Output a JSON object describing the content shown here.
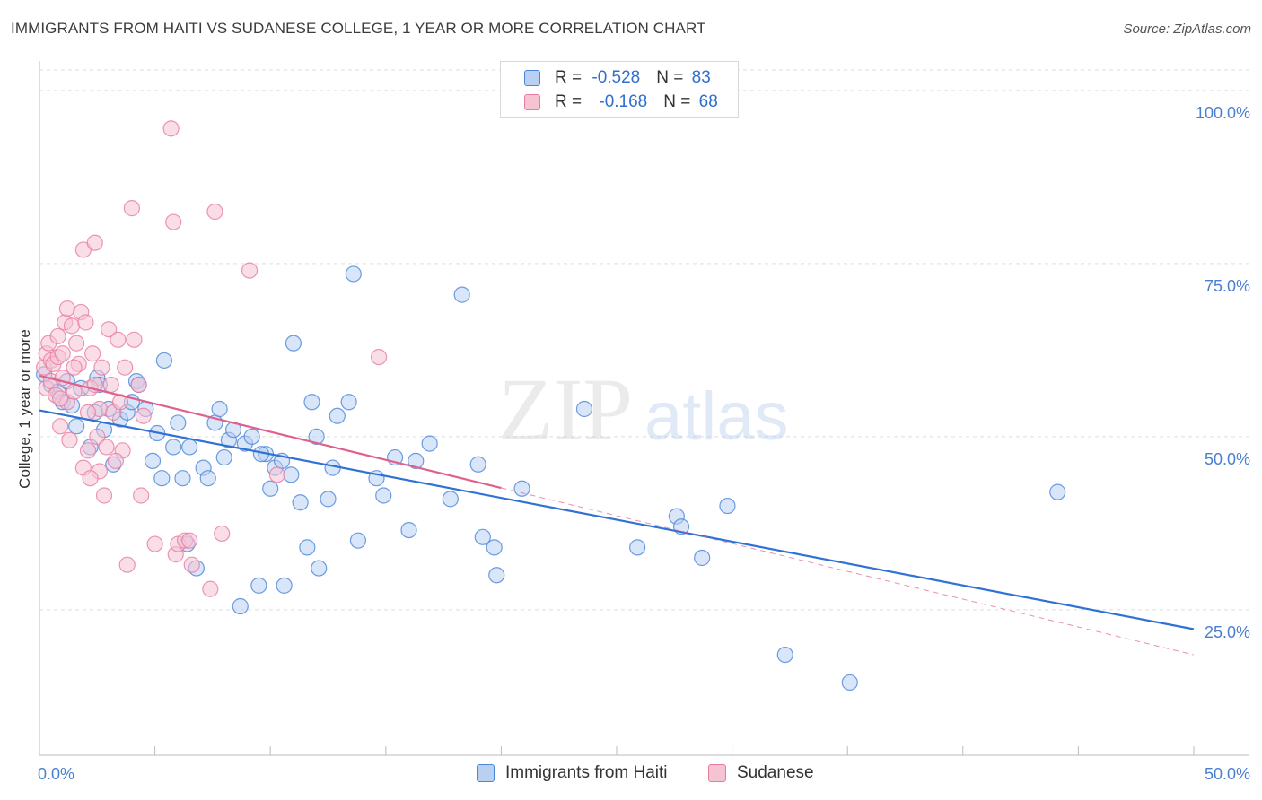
{
  "title": "IMMIGRANTS FROM HAITI VS SUDANESE COLLEGE, 1 YEAR OR MORE CORRELATION CHART",
  "source": "Source: ZipAtlas.com",
  "watermark": {
    "zip": "ZIP",
    "atlas": "atlas"
  },
  "colors": {
    "blue": "#4a86d8",
    "blue_fill": "#b9d0f2",
    "blue_line": "#2f72d4",
    "pink": "#e87ca0",
    "pink_fill": "#f6c3d3",
    "pink_line": "#e0608c",
    "tick_text": "#4a7fd0",
    "grid": "#dedede"
  },
  "legend": {
    "rows": [
      {
        "r_label": "R = ",
        "r_value": "-0.528",
        "n_label": "N = ",
        "n_value": "83",
        "color": "blue"
      },
      {
        "r_label": "R = ",
        "r_value": "-0.168",
        "n_label": "N = ",
        "n_value": "68",
        "color": "pink"
      }
    ]
  },
  "chart_data": {
    "type": "scatter",
    "title": "IMMIGRANTS FROM HAITI VS SUDANESE COLLEGE, 1 YEAR OR MORE CORRELATION CHART",
    "xlabel": "",
    "ylabel": "College, 1 year or more",
    "xlim": [
      0,
      50
    ],
    "ylim": [
      4,
      104
    ],
    "x_tick_labels": [
      "0.0%",
      "50.0%"
    ],
    "y_ticks": [
      25,
      50,
      75,
      100
    ],
    "y_tick_labels": [
      "25.0%",
      "50.0%",
      "75.0%",
      "100.0%"
    ],
    "grid": true,
    "legend_position": "top-center",
    "series": [
      {
        "name": "Immigrants from Haiti",
        "color": "blue",
        "r": -0.528,
        "n": 83,
        "trend": {
          "x": [
            0,
            50
          ],
          "y": [
            53.8,
            22.2
          ]
        },
        "points": [
          [
            0.5,
            57.5
          ],
          [
            0.8,
            56.5
          ],
          [
            1.0,
            55.0
          ],
          [
            1.2,
            58.0
          ],
          [
            1.4,
            54.5
          ],
          [
            1.6,
            51.5
          ],
          [
            1.8,
            57.0
          ],
          [
            2.2,
            48.5
          ],
          [
            2.5,
            58.5
          ],
          [
            2.6,
            57.5
          ],
          [
            2.8,
            51.0
          ],
          [
            3.0,
            54.0
          ],
          [
            3.2,
            46.0
          ],
          [
            3.5,
            52.5
          ],
          [
            3.8,
            53.5
          ],
          [
            4.0,
            55.0
          ],
          [
            4.2,
            58.0
          ],
          [
            4.3,
            57.5
          ],
          [
            4.6,
            54.0
          ],
          [
            4.9,
            46.5
          ],
          [
            5.1,
            50.5
          ],
          [
            5.3,
            44.0
          ],
          [
            5.4,
            61.0
          ],
          [
            5.8,
            48.5
          ],
          [
            6.0,
            52.0
          ],
          [
            6.2,
            44.0
          ],
          [
            6.4,
            34.5
          ],
          [
            6.5,
            48.5
          ],
          [
            6.8,
            31.0
          ],
          [
            7.1,
            45.5
          ],
          [
            7.3,
            44.0
          ],
          [
            7.6,
            52.0
          ],
          [
            7.8,
            54.0
          ],
          [
            8.0,
            47.0
          ],
          [
            8.2,
            49.5
          ],
          [
            8.4,
            51.0
          ],
          [
            8.7,
            25.5
          ],
          [
            8.9,
            49.0
          ],
          [
            9.2,
            50.0
          ],
          [
            9.5,
            28.5
          ],
          [
            9.8,
            47.5
          ],
          [
            9.6,
            47.5
          ],
          [
            10.0,
            42.5
          ],
          [
            10.2,
            45.5
          ],
          [
            10.5,
            46.5
          ],
          [
            10.6,
            28.5
          ],
          [
            10.9,
            44.5
          ],
          [
            11.0,
            63.5
          ],
          [
            11.3,
            40.5
          ],
          [
            11.6,
            34.0
          ],
          [
            11.8,
            55.0
          ],
          [
            12.0,
            50.0
          ],
          [
            12.1,
            31.0
          ],
          [
            12.5,
            41.0
          ],
          [
            12.7,
            45.5
          ],
          [
            12.9,
            53.0
          ],
          [
            13.4,
            55.0
          ],
          [
            13.6,
            73.5
          ],
          [
            13.8,
            35.0
          ],
          [
            14.6,
            44.0
          ],
          [
            14.9,
            41.5
          ],
          [
            15.4,
            47.0
          ],
          [
            16.0,
            36.5
          ],
          [
            16.3,
            46.5
          ],
          [
            16.9,
            49.0
          ],
          [
            17.8,
            41.0
          ],
          [
            18.3,
            70.5
          ],
          [
            19.0,
            46.0
          ],
          [
            19.2,
            35.5
          ],
          [
            19.7,
            34.0
          ],
          [
            19.8,
            30.0
          ],
          [
            20.9,
            42.5
          ],
          [
            23.6,
            54.0
          ],
          [
            25.9,
            34.0
          ],
          [
            27.6,
            38.5
          ],
          [
            27.8,
            37.0
          ],
          [
            28.7,
            32.5
          ],
          [
            29.8,
            40.0
          ],
          [
            32.3,
            18.5
          ],
          [
            35.1,
            14.5
          ],
          [
            44.1,
            42.0
          ],
          [
            0.2,
            59.0
          ],
          [
            2.4,
            53.5
          ]
        ]
      },
      {
        "name": "Sudanese",
        "color": "pink",
        "r": -0.168,
        "n": 68,
        "trend": {
          "x": [
            0,
            20
          ],
          "y": [
            58.8,
            42.6
          ]
        },
        "trend_dashed": {
          "x": [
            20,
            50
          ],
          "y": [
            42.6,
            18.5
          ]
        },
        "points": [
          [
            0.2,
            60.0
          ],
          [
            0.3,
            62.0
          ],
          [
            0.3,
            57.0
          ],
          [
            0.4,
            63.5
          ],
          [
            0.5,
            61.0
          ],
          [
            0.5,
            58.0
          ],
          [
            0.6,
            60.5
          ],
          [
            0.7,
            56.0
          ],
          [
            0.8,
            61.5
          ],
          [
            0.8,
            64.5
          ],
          [
            0.9,
            51.5
          ],
          [
            1.0,
            58.5
          ],
          [
            1.0,
            62.0
          ],
          [
            1.1,
            66.5
          ],
          [
            1.2,
            68.5
          ],
          [
            1.2,
            55.0
          ],
          [
            1.3,
            49.5
          ],
          [
            1.4,
            66.0
          ],
          [
            1.5,
            56.5
          ],
          [
            1.6,
            63.5
          ],
          [
            1.7,
            60.5
          ],
          [
            1.8,
            68.0
          ],
          [
            1.9,
            77.0
          ],
          [
            1.9,
            45.5
          ],
          [
            2.0,
            66.5
          ],
          [
            2.1,
            48.0
          ],
          [
            2.2,
            57.0
          ],
          [
            2.3,
            62.0
          ],
          [
            2.4,
            78.0
          ],
          [
            2.4,
            57.5
          ],
          [
            2.5,
            50.0
          ],
          [
            2.6,
            54.0
          ],
          [
            2.6,
            45.0
          ],
          [
            2.7,
            60.0
          ],
          [
            2.8,
            41.5
          ],
          [
            2.9,
            48.5
          ],
          [
            3.0,
            65.5
          ],
          [
            3.1,
            57.5
          ],
          [
            3.2,
            53.5
          ],
          [
            3.4,
            64.0
          ],
          [
            3.5,
            55.0
          ],
          [
            3.6,
            48.0
          ],
          [
            3.7,
            60.0
          ],
          [
            3.8,
            31.5
          ],
          [
            4.0,
            83.0
          ],
          [
            4.1,
            64.0
          ],
          [
            4.3,
            57.5
          ],
          [
            4.4,
            41.5
          ],
          [
            4.5,
            53.0
          ],
          [
            5.0,
            34.5
          ],
          [
            5.7,
            94.5
          ],
          [
            5.8,
            81.0
          ],
          [
            5.9,
            33.0
          ],
          [
            6.0,
            34.5
          ],
          [
            6.3,
            35.0
          ],
          [
            6.5,
            35.0
          ],
          [
            6.6,
            31.5
          ],
          [
            7.4,
            28.0
          ],
          [
            7.6,
            82.5
          ],
          [
            7.9,
            36.0
          ],
          [
            9.1,
            74.0
          ],
          [
            10.3,
            44.5
          ],
          [
            14.7,
            61.5
          ],
          [
            2.1,
            53.5
          ],
          [
            1.5,
            60.0
          ],
          [
            0.9,
            55.5
          ],
          [
            3.3,
            46.5
          ],
          [
            2.2,
            44.0
          ]
        ]
      }
    ]
  }
}
